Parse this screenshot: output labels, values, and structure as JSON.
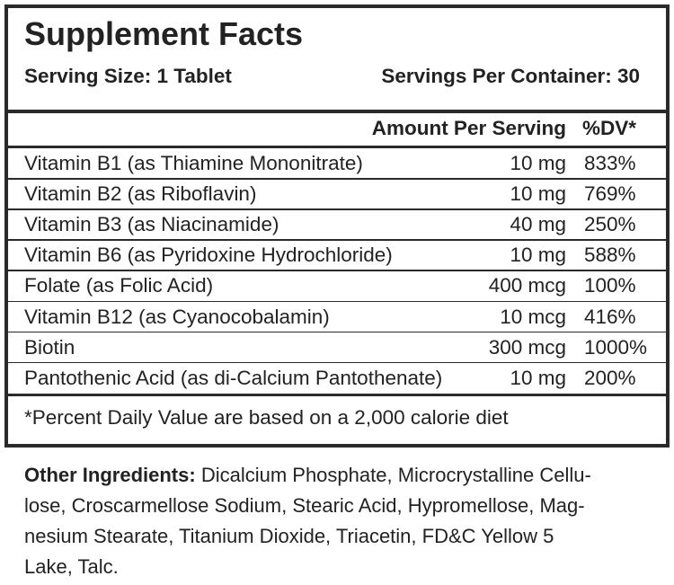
{
  "header": {
    "title": "Supplement Facts",
    "serving_size": "Serving Size: 1 Tablet",
    "servings_per_container": "Servings Per Container: 30"
  },
  "table": {
    "columns": [
      "Amount Per Serving",
      "%DV*"
    ],
    "rows": [
      [
        "Vitamin B1 (as Thiamine Mononitrate)",
        "10 mg",
        "833%"
      ],
      [
        "Vitamin B2 (as Riboflavin)",
        "10 mg",
        "769%"
      ],
      [
        "Vitamin B3 (as Niacinamide)",
        "40 mg",
        "250%"
      ],
      [
        "Vitamin B6 (as Pyridoxine Hydrochloride)",
        "10 mg",
        "588%"
      ],
      [
        "Folate (as Folic Acid)",
        "400 mcg",
        "100%"
      ],
      [
        "Vitamin B12 (as Cyanocobalamin)",
        "10 mcg",
        "416%"
      ],
      [
        "Biotin",
        "300 mcg",
        "1000%"
      ],
      [
        "Pantothenic Acid (as di-Calcium Pantothenate)",
        "10 mg",
        "200%"
      ]
    ]
  },
  "footnote": "*Percent Daily Value are based on a 2,000 calorie diet",
  "other_ingredients": {
    "label": "Other Ingredients:",
    "lines": [
      "Dicalcium Phosphate, Microcrystalline Cellu-",
      "lose, Croscarmellose Sodium, Stearic Acid, Hypromellose, Mag-",
      "nesium Stearate, Titanium Dioxide, Triacetin, FD&C Yellow 5",
      "Lake, Talc."
    ]
  }
}
